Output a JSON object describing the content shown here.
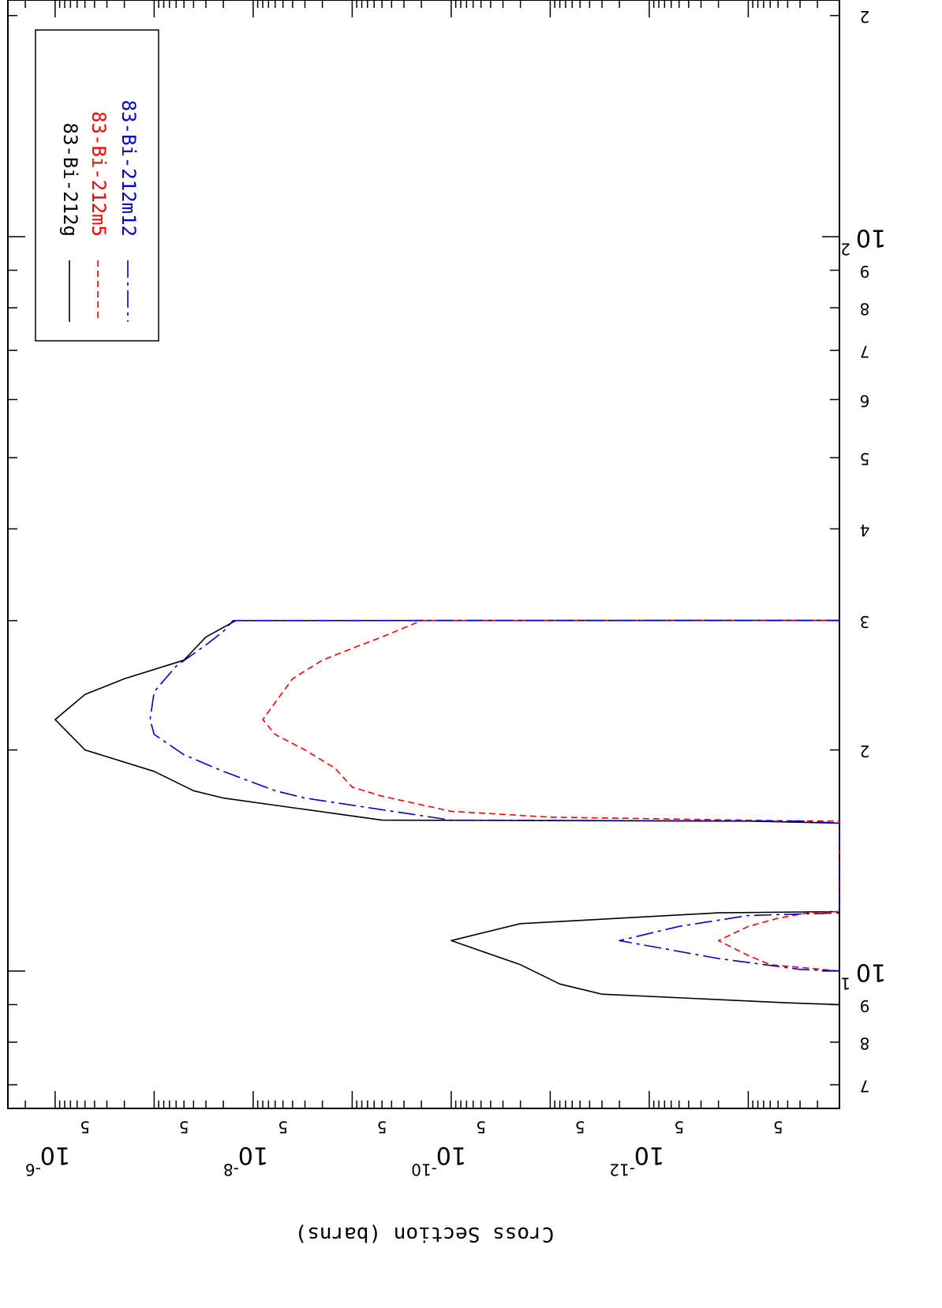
{
  "chart_data": {
    "type": "line",
    "orientation": "rotated-180",
    "title": "",
    "xlabel": "",
    "ylabel": "Cross Section (barns)",
    "xscale": "log",
    "yscale": "log",
    "xlim": [
      6.5,
      210
    ],
    "ylim": [
      1.2e-14,
      3e-06
    ],
    "x_tick_labels": [
      "7",
      "8",
      "9",
      "10",
      "2",
      "3",
      "4",
      "5",
      "6",
      "7",
      "8",
      "9",
      "10",
      "2"
    ],
    "x_major_labels": [
      {
        "base": "10",
        "exp": "1",
        "value": 10
      },
      {
        "base": "10",
        "exp": "2",
        "value": 100
      }
    ],
    "y_major_labels": [
      {
        "base": "10",
        "exp": "-6",
        "value": 1e-06
      },
      {
        "base": "10",
        "exp": "-8",
        "value": 1e-08
      },
      {
        "base": "10",
        "exp": "-10",
        "value": 1e-10
      },
      {
        "base": "10",
        "exp": "-12",
        "value": 1e-12
      }
    ],
    "y_minor_label": "5",
    "legend_position": "top-left",
    "series": [
      {
        "name": "83-Bi-212g",
        "color": "#000000",
        "style": "solid",
        "x": [
          9.0,
          9.05,
          9.3,
          9.6,
          10.2,
          11.0,
          11.6,
          12.0,
          12.05,
          15.9,
          16.0,
          16.05,
          17.2,
          17.6,
          18.7,
          20.0,
          22.0,
          23.8,
          25.0,
          26.5,
          28.5,
          30.0,
          30.02
        ],
        "y": [
          1.2e-14,
          4e-14,
          3e-12,
          8e-12,
          2e-11,
          1e-10,
          2e-11,
          2e-13,
          1.2e-14,
          1.2e-14,
          1e-13,
          5e-10,
          2e-08,
          4e-08,
          1e-07,
          5e-07,
          1e-06,
          5e-07,
          2e-07,
          5e-08,
          3e-08,
          1.5e-08,
          1.2e-14
        ]
      },
      {
        "name": "83-Bi-212m5",
        "color": "#ff0000",
        "style": "dashed",
        "x": [
          10.0,
          10.2,
          10.5,
          11.0,
          11.5,
          11.8,
          12.0,
          12.05,
          16.0,
          16.02,
          16.2,
          16.5,
          17.3,
          17.8,
          18.9,
          20.0,
          21.0,
          22.0,
          24.0,
          25.0,
          26.5,
          27.5,
          28.5,
          30.0,
          30.02
        ],
        "y": [
          1.2e-14,
          6e-14,
          1e-13,
          2e-13,
          1e-13,
          5e-14,
          2.5e-14,
          1.2e-14,
          1.2e-14,
          5e-14,
          1e-11,
          1e-10,
          5e-10,
          1e-09,
          1.5e-09,
          3e-09,
          6e-09,
          8e-09,
          5e-09,
          4e-09,
          2e-09,
          1e-09,
          5e-10,
          2e-10,
          1.2e-14
        ]
      },
      {
        "name": "83-Bi-212m12",
        "color": "#0000cc",
        "style": "dash-dot",
        "x": [
          10.0,
          10.05,
          10.4,
          11.0,
          11.5,
          11.9,
          12.0,
          15.9,
          16.0,
          16.05,
          17.2,
          17.6,
          18.7,
          19.7,
          21.0,
          22.0,
          24.0,
          26.0,
          27.8,
          29.0,
          30.0,
          30.02
        ],
        "y": [
          1.2e-14,
          3e-14,
          2e-13,
          2e-12,
          5e-13,
          1e-13,
          1.2e-14,
          1.2e-14,
          3e-14,
          1e-10,
          3e-09,
          6e-09,
          2e-08,
          5e-08,
          1e-07,
          1.1e-07,
          1e-07,
          6e-08,
          3e-08,
          2e-08,
          1.6e-08,
          1.2e-14
        ]
      }
    ]
  }
}
